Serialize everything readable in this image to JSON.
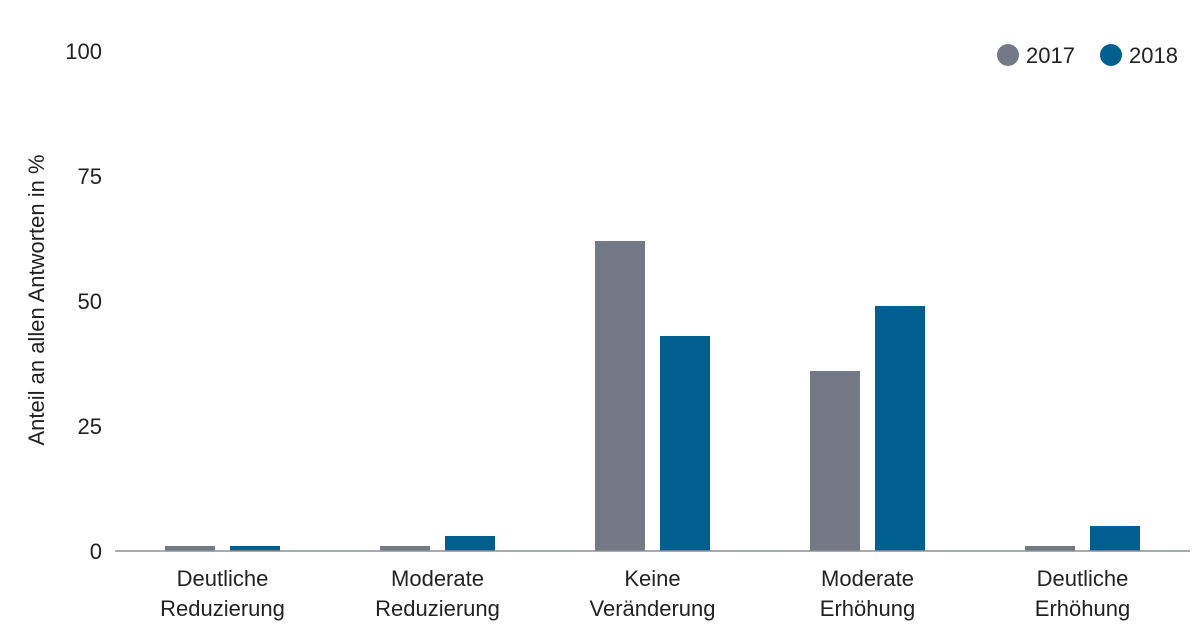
{
  "chart_data": {
    "type": "bar",
    "ylabel": "Anteil an allen Antworten in %",
    "ylim": [
      0,
      100
    ],
    "yticks": [
      0,
      25,
      50,
      75,
      100
    ],
    "categories": [
      [
        "Deutliche",
        "Reduzierung"
      ],
      [
        "Moderate",
        "Reduzierung"
      ],
      [
        "Keine",
        "Veränderung"
      ],
      [
        "Moderate",
        "Erhöhung"
      ],
      [
        "Deutliche",
        "Erhöhung"
      ]
    ],
    "series": [
      {
        "name": "2017",
        "color": "#737a86",
        "values": [
          1,
          1,
          62,
          36,
          1
        ]
      },
      {
        "name": "2018",
        "color": "#005f8f",
        "values": [
          1,
          3,
          43,
          49,
          5
        ]
      }
    ],
    "legend_position": "top-right",
    "grid": false
  }
}
